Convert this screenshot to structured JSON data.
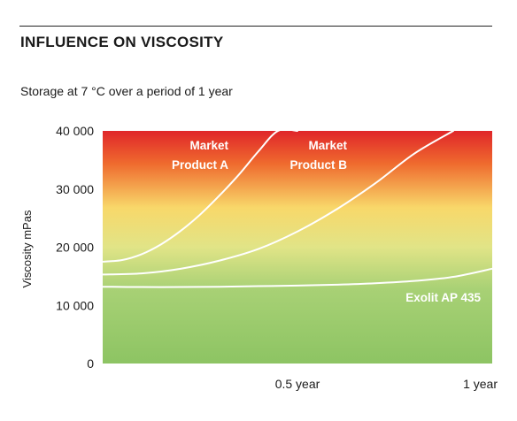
{
  "title": "INFLUENCE ON VISCOSITY",
  "subtitle": "Storage at 7 °C over a period of 1 year",
  "chart_data": {
    "type": "line",
    "title": "INFLUENCE ON VISCOSITY",
    "subtitle": "Storage at 7 °C over a period of 1 year",
    "xlabel": "",
    "ylabel": "Viscosity mPas",
    "xlim": [
      0,
      1
    ],
    "ylim": [
      0,
      40000
    ],
    "x_ticks": [
      {
        "value": 0.5,
        "label": "0.5 year"
      },
      {
        "value": 1,
        "label": "1 year"
      }
    ],
    "y_ticks": [
      {
        "value": 0,
        "label": "0"
      },
      {
        "value": 10000,
        "label": "10 000"
      },
      {
        "value": 20000,
        "label": "20 000"
      },
      {
        "value": 30000,
        "label": "30 000"
      },
      {
        "value": 40000,
        "label": "40 000"
      }
    ],
    "grid": false,
    "background": "vertical gradient green (low) to yellow to red (high)",
    "series": [
      {
        "name": "Market Product A",
        "label_lines": [
          "Market",
          "Product A"
        ],
        "color": "#ffffff",
        "x": [
          0,
          0.05,
          0.1,
          0.15,
          0.2,
          0.25,
          0.3,
          0.35,
          0.4,
          0.45,
          0.5
        ],
        "y": [
          17500,
          17800,
          18800,
          20500,
          22800,
          25600,
          28900,
          32500,
          36500,
          40000,
          40000
        ]
      },
      {
        "name": "Market Product B",
        "label_lines": [
          "Market",
          "Product B"
        ],
        "color": "#ffffff",
        "x": [
          0,
          0.1,
          0.2,
          0.3,
          0.4,
          0.5,
          0.6,
          0.7,
          0.8,
          0.9
        ],
        "y": [
          15300,
          15500,
          16300,
          17700,
          19700,
          22700,
          26500,
          31000,
          36100,
          40000
        ]
      },
      {
        "name": "Exolit AP 435",
        "label_lines": [
          "Exolit AP 435"
        ],
        "color": "#ffffff",
        "x": [
          0,
          0.1,
          0.2,
          0.3,
          0.4,
          0.5,
          0.6,
          0.7,
          0.8,
          0.9,
          1.0
        ],
        "y": [
          13200,
          13150,
          13150,
          13200,
          13300,
          13400,
          13550,
          13800,
          14200,
          14900,
          16300
        ]
      }
    ]
  }
}
